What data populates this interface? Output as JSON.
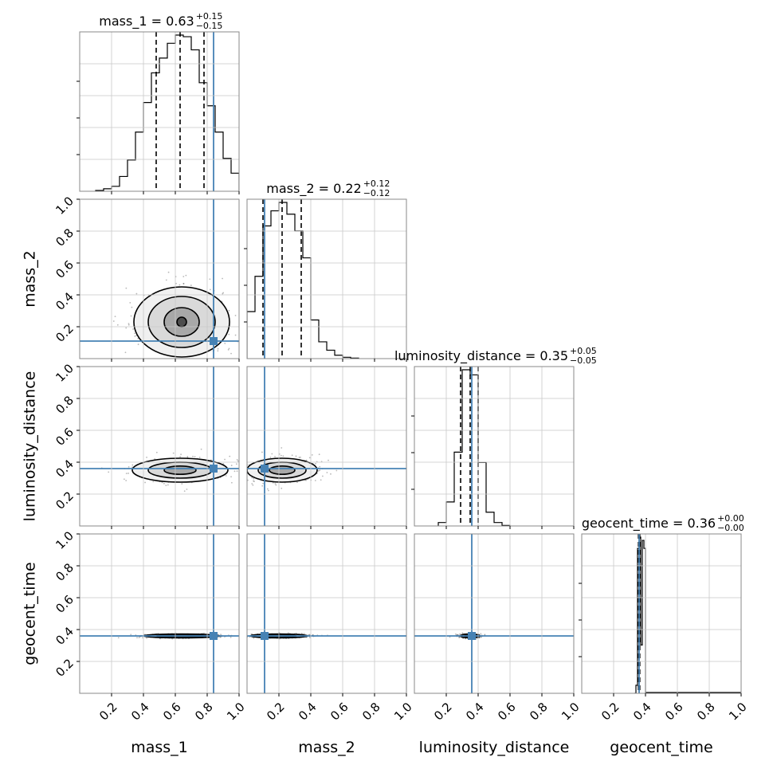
{
  "chart_data": {
    "type": "corner",
    "parameters": [
      "mass_1",
      "mass_2",
      "luminosity_distance",
      "geocent_time"
    ],
    "titles": [
      {
        "param": "mass_1",
        "text": "mass_1 = 0.63",
        "plus": "+0.15",
        "minus": "−0.15"
      },
      {
        "param": "mass_2",
        "text": "mass_2 = 0.22",
        "plus": "+0.12",
        "minus": "−0.12"
      },
      {
        "param": "luminosity_distance",
        "text": "luminosity_distance = 0.35",
        "plus": "+0.05",
        "minus": "−0.05"
      },
      {
        "param": "geocent_time",
        "text": "geocent_time = 0.36",
        "plus": "+0.00",
        "minus": "−0.00"
      }
    ],
    "xlabels": [
      "mass_1",
      "mass_2",
      "luminosity_distance",
      "geocent_time"
    ],
    "ylabels": [
      "mass_2",
      "luminosity_distance",
      "geocent_time"
    ],
    "axis_range": [
      0,
      1
    ],
    "x_tick_labels": [
      "0.2",
      "0.4",
      "0.6",
      "0.8",
      "1.0"
    ],
    "y_tick_labels": [
      "0.2",
      "0.4",
      "0.6",
      "0.8",
      "1.0"
    ],
    "grid": true,
    "truths": [
      0.84,
      0.11,
      0.36,
      0.36
    ],
    "truth_color": "#4682b4",
    "histograms": [
      {
        "param": "mass_1",
        "bin_edges": [
          0.1,
          0.15,
          0.2,
          0.25,
          0.3,
          0.35,
          0.4,
          0.45,
          0.5,
          0.55,
          0.6,
          0.65,
          0.7,
          0.75,
          0.8,
          0.85,
          0.9,
          0.95,
          1.0
        ],
        "counts": [
          0.005,
          0.015,
          0.03,
          0.09,
          0.19,
          0.36,
          0.54,
          0.72,
          0.81,
          0.9,
          0.95,
          0.94,
          0.86,
          0.66,
          0.52,
          0.36,
          0.2,
          0.11
        ],
        "quantiles": [
          0.48,
          0.63,
          0.78
        ]
      },
      {
        "param": "mass_2",
        "bin_edges": [
          0.0,
          0.05,
          0.1,
          0.15,
          0.2,
          0.25,
          0.3,
          0.35,
          0.4,
          0.45,
          0.5,
          0.55,
          0.6,
          0.65,
          0.7
        ],
        "counts": [
          0.28,
          0.49,
          0.79,
          0.88,
          0.93,
          0.86,
          0.76,
          0.6,
          0.23,
          0.1,
          0.05,
          0.02,
          0.008,
          0.003
        ],
        "quantiles": [
          0.1,
          0.22,
          0.34
        ]
      },
      {
        "param": "luminosity_distance",
        "bin_edges": [
          0.15,
          0.2,
          0.25,
          0.3,
          0.35,
          0.4,
          0.45,
          0.5,
          0.55,
          0.6
        ],
        "counts": [
          0.02,
          0.14,
          0.43,
          0.91,
          0.88,
          0.37,
          0.08,
          0.02,
          0.003
        ],
        "quantiles": [
          0.29,
          0.35,
          0.4
        ]
      },
      {
        "param": "geocent_time",
        "bin_edges": [
          0.33,
          0.34,
          0.35,
          0.36,
          0.37,
          0.38,
          0.39,
          0.4
        ],
        "counts": [
          0.0,
          0.05,
          0.9,
          0.97,
          0.3,
          0.95,
          0.9
        ],
        "quantiles": [
          0.356,
          0.36,
          0.364
        ]
      }
    ],
    "contours": [
      {
        "x": "mass_1",
        "y": "mass_2",
        "center": [
          0.64,
          0.23
        ],
        "levels": [
          {
            "rx": 0.3,
            "ry": 0.22
          },
          {
            "rx": 0.21,
            "ry": 0.16
          },
          {
            "rx": 0.11,
            "ry": 0.09
          },
          {
            "rx": 0.03,
            "ry": 0.03
          }
        ]
      },
      {
        "x": "mass_1",
        "y": "luminosity_distance",
        "center": [
          0.63,
          0.35
        ],
        "levels": [
          {
            "rx": 0.3,
            "ry": 0.075
          },
          {
            "rx": 0.2,
            "ry": 0.05
          },
          {
            "rx": 0.1,
            "ry": 0.026
          }
        ]
      },
      {
        "x": "mass_2",
        "y": "luminosity_distance",
        "center": [
          0.22,
          0.35
        ],
        "levels": [
          {
            "rx": 0.22,
            "ry": 0.075
          },
          {
            "rx": 0.15,
            "ry": 0.05
          },
          {
            "rx": 0.08,
            "ry": 0.026
          }
        ]
      },
      {
        "x": "mass_1",
        "y": "geocent_time",
        "center": [
          0.64,
          0.36
        ],
        "levels": [
          {
            "rx": 0.24,
            "ry": 0.012
          },
          {
            "rx": 0.16,
            "ry": 0.007
          }
        ]
      },
      {
        "x": "mass_2",
        "y": "geocent_time",
        "center": [
          0.2,
          0.36
        ],
        "levels": [
          {
            "rx": 0.18,
            "ry": 0.012
          },
          {
            "rx": 0.11,
            "ry": 0.007
          }
        ]
      },
      {
        "x": "luminosity_distance",
        "y": "geocent_time",
        "center": [
          0.35,
          0.36
        ],
        "levels": [
          {
            "rx": 0.06,
            "ry": 0.012
          },
          {
            "rx": 0.035,
            "ry": 0.007
          }
        ]
      }
    ]
  }
}
